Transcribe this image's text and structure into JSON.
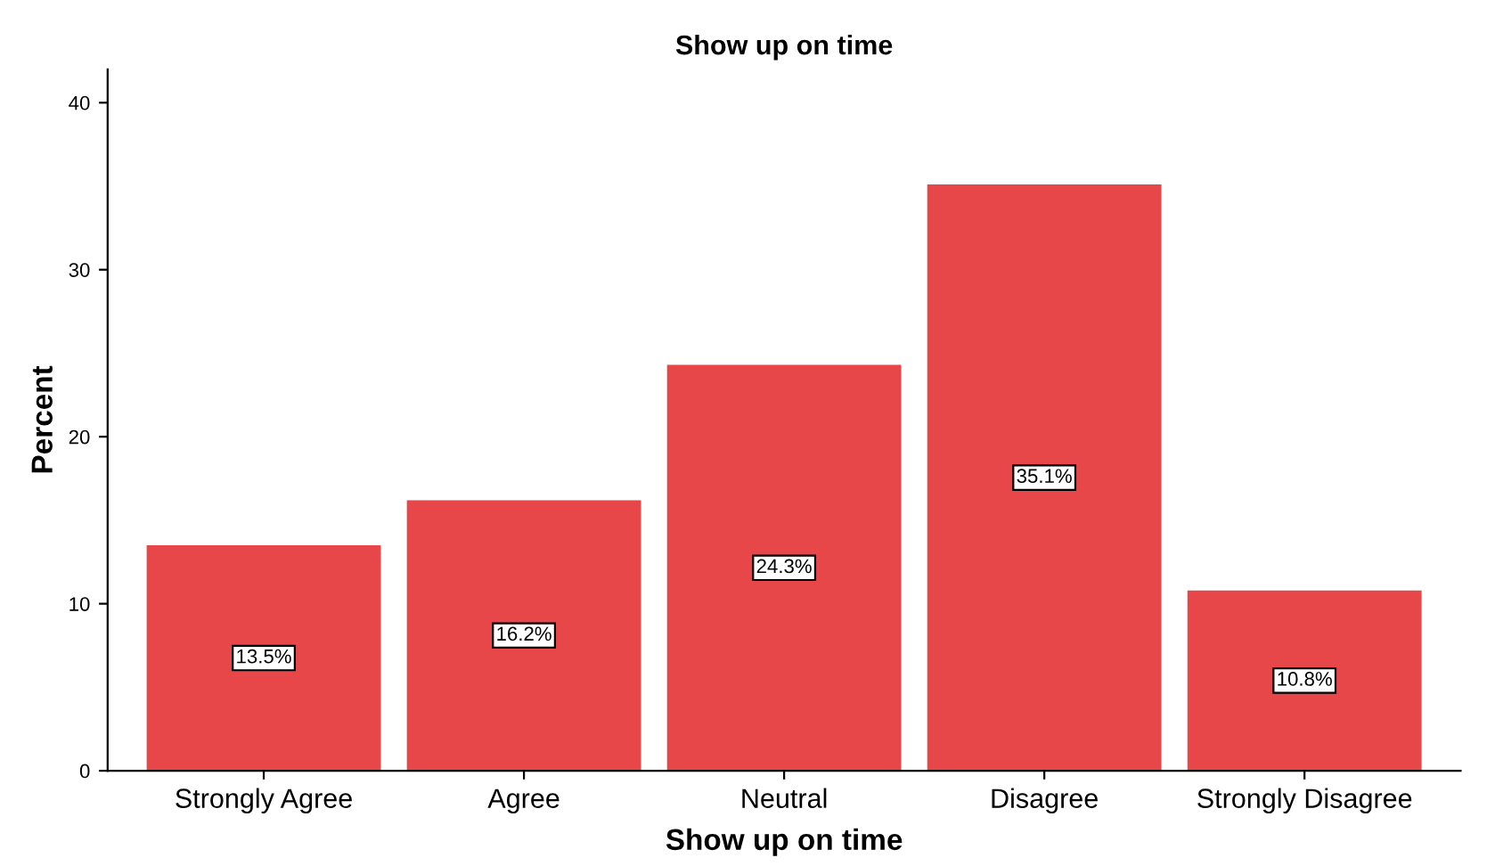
{
  "chart_data": {
    "type": "bar",
    "title": "Show up on time",
    "xlabel": "Show up on time",
    "ylabel": "Percent",
    "categories": [
      "Strongly Agree",
      "Agree",
      "Neutral",
      "Disagree",
      "Strongly Disagree"
    ],
    "values": [
      13.5,
      16.2,
      24.3,
      35.1,
      10.8
    ],
    "value_labels": [
      "13.5%",
      "16.2%",
      "24.3%",
      "35.1%",
      "10.8%"
    ],
    "color": "#e8474a",
    "ylim": [
      0,
      42
    ],
    "yticks": [
      0,
      10,
      20,
      30,
      40
    ],
    "grid": false,
    "legend": false
  }
}
